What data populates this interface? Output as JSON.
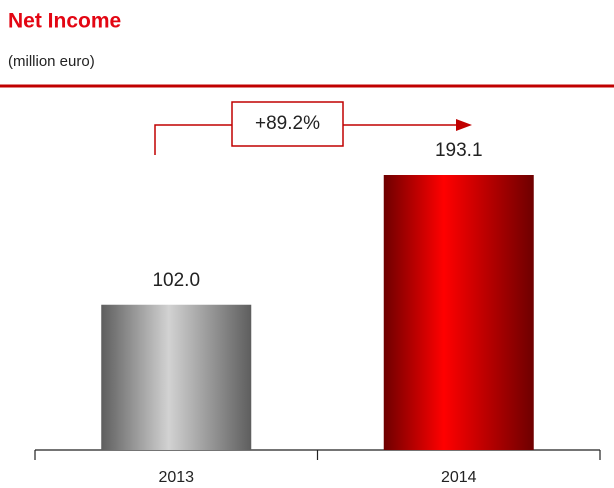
{
  "chart_data": {
    "type": "bar",
    "title": "Net Income",
    "subtitle": "(million euro)",
    "categories": [
      "2013",
      "2014"
    ],
    "values": [
      102.0,
      193.1
    ],
    "value_labels": [
      "102.0",
      "193.1"
    ],
    "colors": [
      "gray",
      "red"
    ],
    "annotation": "+89.2%"
  }
}
